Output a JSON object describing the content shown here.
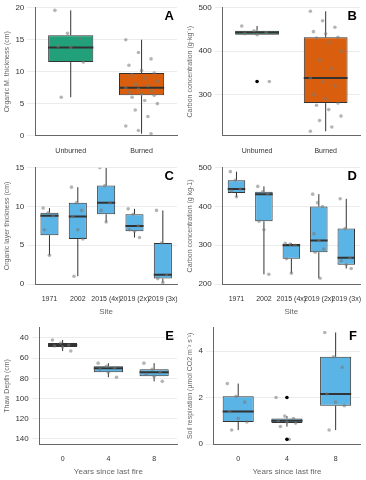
{
  "chart_data": [
    {
      "type": "box",
      "label": "A",
      "y_label": "Organic M. thickness (cm)",
      "categories": [
        "Unburned",
        "Burned"
      ],
      "colors": [
        "#22a07a",
        "#d95f0e"
      ],
      "boxes": [
        {
          "min": 6,
          "q1": 11.5,
          "median": 13.8,
          "q3": 15.7,
          "max": 19.6
        },
        {
          "min": 0.3,
          "q1": 6.3,
          "median": 7.5,
          "q3": 9.8,
          "max": 15
        }
      ],
      "points": [
        [
          19.6,
          16,
          15.2,
          14,
          13.8,
          11.5,
          6
        ],
        [
          15,
          13,
          12,
          11,
          10.2,
          9.8,
          9.5,
          9,
          8.5,
          8,
          7.8,
          7.5,
          7.3,
          7,
          6.8,
          6.5,
          6.3,
          6,
          5.5,
          5,
          4,
          3,
          1.5,
          0.8,
          0.3
        ]
      ],
      "outliers": [
        [],
        []
      ],
      "ylim": [
        0,
        20
      ],
      "yticks": [
        0,
        5,
        10,
        15,
        20
      ],
      "grid": true
    },
    {
      "type": "box",
      "label": "B",
      "y_label": "Carbon concentration (g·kg⁻¹)",
      "categories": [
        "Unburned",
        "Burned"
      ],
      "colors": [
        "#22a07a",
        "#d95f0e"
      ],
      "boxes": [
        {
          "min": 438,
          "q1": 438,
          "median": 443,
          "q3": 447,
          "max": 458
        },
        {
          "min": 215,
          "q1": 280,
          "median": 338,
          "q3": 432,
          "max": 492
        }
      ],
      "points": [
        [
          458,
          447,
          443,
          440,
          438,
          330
        ],
        [
          492,
          470,
          455,
          445,
          440,
          432,
          430,
          420,
          400,
          380,
          360,
          338,
          330,
          320,
          300,
          290,
          280,
          275,
          265,
          250,
          240,
          225,
          215
        ]
      ],
      "outliers": [
        [
          330
        ],
        []
      ],
      "ylim": [
        205,
        500
      ],
      "yticks": [
        300,
        400,
        500
      ],
      "grid": true
    },
    {
      "type": "box",
      "label": "C",
      "y_label": "Organic layer thickness (cm)",
      "x_label": "Site",
      "categories": [
        "1971",
        "2002",
        "2015 (4x)",
        "2019 (2x)",
        "2019 (3x)"
      ],
      "color": "#5ab4e5",
      "boxes": [
        {
          "min": 3.7,
          "q1": 6.3,
          "median": 8.8,
          "q3": 9.2,
          "max": 9.8
        },
        {
          "min": 1,
          "q1": 5.8,
          "median": 8.7,
          "q3": 10.5,
          "max": 12.5
        },
        {
          "min": 8,
          "q1": 9,
          "median": 10.5,
          "q3": 12.7,
          "max": 15
        },
        {
          "min": 6,
          "q1": 6.8,
          "median": 7.5,
          "q3": 9,
          "max": 9.7
        },
        {
          "min": 0.2,
          "q1": 0.7,
          "median": 1.2,
          "q3": 5.3,
          "max": 9.5
        }
      ],
      "points": [
        [
          9.8,
          9.2,
          8.8,
          7,
          3.7
        ],
        [
          12.5,
          10.5,
          9.5,
          8.7,
          7,
          5.8,
          1
        ],
        [
          15,
          12.7,
          10.5,
          9.5,
          8
        ],
        [
          9.7,
          9,
          7.5,
          7,
          6.8,
          6
        ],
        [
          9.5,
          5.3,
          1.2,
          0.7,
          0.2
        ]
      ],
      "outliers": [
        [],
        [],
        [],
        [],
        []
      ],
      "ylim": [
        0,
        15
      ],
      "yticks": [
        0,
        5,
        10,
        15
      ],
      "grid": true
    },
    {
      "type": "box",
      "label": "D",
      "y_label": "Carbon concentration (g kg-1)",
      "x_label": "Site",
      "categories": [
        "1971",
        "2002",
        "2015 (4x)",
        "2019 (2x)",
        "2019 (3x)"
      ],
      "color": "#5ab4e5",
      "boxes": [
        {
          "min": 425,
          "q1": 435,
          "median": 445,
          "q3": 468,
          "max": 490
        },
        {
          "min": 225,
          "q1": 362,
          "median": 432,
          "q3": 438,
          "max": 452
        },
        {
          "min": 228,
          "q1": 265,
          "median": 300,
          "q3": 303,
          "max": 305
        },
        {
          "min": 215,
          "q1": 282,
          "median": 312,
          "q3": 400,
          "max": 432
        },
        {
          "min": 240,
          "q1": 250,
          "median": 268,
          "q3": 343,
          "max": 420
        }
      ],
      "points": [
        [
          490,
          468,
          445,
          440,
          425
        ],
        [
          452,
          438,
          432,
          362,
          340,
          225
        ],
        [
          305,
          303,
          300,
          265,
          228
        ],
        [
          432,
          410,
          400,
          330,
          312,
          290,
          282,
          215
        ],
        [
          420,
          343,
          268,
          260,
          250,
          240
        ]
      ],
      "outliers": [
        [],
        [],
        [],
        [],
        []
      ],
      "ylim": [
        200,
        500
      ],
      "yticks": [
        200,
        300,
        400,
        500
      ],
      "grid": true
    },
    {
      "type": "box",
      "label": "E",
      "y_label": "Thaw Depth (cm)",
      "x_label": "Years since last fire",
      "categories": [
        "0",
        "4",
        "8"
      ],
      "color": "#5ab4e5",
      "boxes": [
        {
          "min": 42,
          "q1": 45,
          "median": 47,
          "q3": 49,
          "max": 53
        },
        {
          "min": 65,
          "q1": 68,
          "median": 70,
          "q3": 74,
          "max": 79
        },
        {
          "min": 65,
          "q1": 71,
          "median": 74,
          "q3": 78,
          "max": 83
        }
      ],
      "points": [
        [
          42,
          45,
          47,
          48,
          49,
          53
        ],
        [
          65,
          68,
          70,
          71,
          74,
          79
        ],
        [
          65,
          71,
          74,
          76,
          78,
          83
        ]
      ],
      "outliers": [
        [],
        [],
        []
      ],
      "ylim": [
        145,
        30
      ],
      "yticks": [
        40,
        60,
        80,
        100,
        120,
        140
      ],
      "grid": true
    },
    {
      "type": "box",
      "label": "F",
      "y_label": "Soil respiration (µmol CO2 m⁻² s⁻¹)",
      "x_label": "Years since last fire",
      "categories": [
        "0",
        "4",
        "8"
      ],
      "color": "#5ab4e5",
      "boxes": [
        {
          "min": 0.6,
          "q1": 0.95,
          "median": 1.4,
          "q3": 2.05,
          "max": 2.6
        },
        {
          "min": 0.75,
          "q1": 0.9,
          "median": 1,
          "q3": 1.1,
          "max": 1.2
        },
        {
          "min": 0.6,
          "q1": 1.65,
          "median": 2.15,
          "q3": 3.75,
          "max": 4.8
        }
      ],
      "points": [
        [
          2.6,
          2.05,
          1.8,
          1.4,
          1.1,
          0.95,
          0.6
        ],
        [
          2,
          1.2,
          1.1,
          1,
          0.95,
          0.9,
          0.75,
          0.2
        ],
        [
          4.8,
          3.75,
          3.3,
          2.15,
          1.8,
          1.65,
          0.6
        ]
      ],
      "outliers": [
        [],
        [
          2,
          0.2
        ],
        []
      ],
      "ylim": [
        0,
        5
      ],
      "yticks": [
        0,
        2,
        4
      ],
      "grid": true
    }
  ]
}
